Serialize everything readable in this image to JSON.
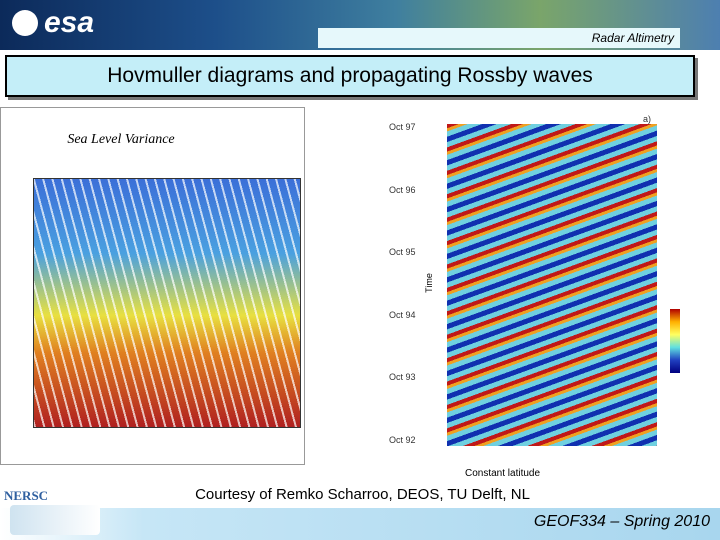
{
  "header": {
    "logo": "esa",
    "section": "Radar Altimetry"
  },
  "title": "Hovmuller diagrams and propagating Rossby waves",
  "left_figure": {
    "title": "Sea Level Variance"
  },
  "right_figure": {
    "panel_label": "a)",
    "y_axis_label": "Time",
    "y_ticks": [
      "Oct 97",
      "Oct 96",
      "Oct 95",
      "Oct 94",
      "Oct 93",
      "Oct 92"
    ],
    "x_axis_label": "Constant latitude"
  },
  "credit": "Courtesy of Remko Scharroo, DEOS, TU Delft, NL",
  "footer": {
    "logo": "NERSC",
    "course": "GEOF334 – Spring 2010"
  }
}
